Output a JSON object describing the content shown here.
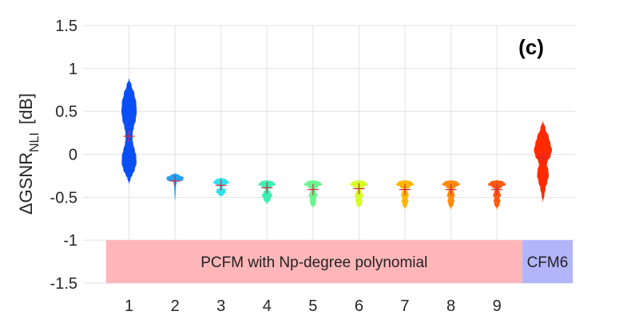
{
  "chart_data": {
    "type": "violin",
    "panel_label": "(c)",
    "ylabel": "ΔGSNR",
    "ylabel_subscript": "NLI",
    "ylabel_unit": "[dB]",
    "ylim": [
      -1.5,
      1.5
    ],
    "yticks": [
      1.5,
      1,
      0.5,
      0,
      -0.5,
      -1,
      -1.5
    ],
    "ytick_labels": [
      "1.5",
      "1",
      "0.5",
      "0",
      "-0.5",
      "-1",
      "-1.5"
    ],
    "xlim": [
      0,
      10.7
    ],
    "xticks": [
      1,
      2,
      3,
      4,
      5,
      6,
      7,
      8,
      9
    ],
    "xtick_labels": [
      "1",
      "2",
      "3",
      "4",
      "5",
      "6",
      "7",
      "8",
      "9"
    ],
    "grid": true,
    "bands": [
      {
        "label": "PCFM with Np-degree polynomial",
        "from": 0.5,
        "to": 9.55,
        "y_from": -1.5,
        "y_to": -1.0,
        "color": "#ffb6b9"
      },
      {
        "label": "CFM6",
        "from": 9.55,
        "to": 10.65,
        "y_from": -1.5,
        "y_to": -1.0,
        "color": "#b3b5fb"
      }
    ],
    "violins": [
      {
        "x": 1,
        "mean": 0.21,
        "color": "#0a4ff5",
        "profile": [
          [
            0.88,
            0
          ],
          [
            0.8,
            0.1
          ],
          [
            0.7,
            0.22
          ],
          [
            0.6,
            0.3
          ],
          [
            0.5,
            0.32
          ],
          [
            0.4,
            0.28
          ],
          [
            0.32,
            0.2
          ],
          [
            0.25,
            0.15
          ],
          [
            0.18,
            0.14
          ],
          [
            0.12,
            0.17
          ],
          [
            0.05,
            0.24
          ],
          [
            -0.02,
            0.3
          ],
          [
            -0.1,
            0.31
          ],
          [
            -0.18,
            0.24
          ],
          [
            -0.24,
            0.14
          ],
          [
            -0.28,
            0.06
          ],
          [
            -0.34,
            0
          ]
        ]
      },
      {
        "x": 2,
        "mean": -0.31,
        "color": "#1fa2f5",
        "profile": [
          [
            -0.22,
            0
          ],
          [
            -0.245,
            0.18
          ],
          [
            -0.27,
            0.36
          ],
          [
            -0.3,
            0.34
          ],
          [
            -0.32,
            0.06
          ],
          [
            -0.38,
            0.03
          ],
          [
            -0.44,
            0.02
          ],
          [
            -0.5,
            0.01
          ],
          [
            -0.53,
            0
          ]
        ]
      },
      {
        "x": 3,
        "mean": -0.36,
        "color": "#2be3ee",
        "profile": [
          [
            -0.27,
            0
          ],
          [
            -0.3,
            0.24
          ],
          [
            -0.33,
            0.34
          ],
          [
            -0.36,
            0.12
          ],
          [
            -0.39,
            0.05
          ],
          [
            -0.41,
            0.18
          ],
          [
            -0.44,
            0.2
          ],
          [
            -0.47,
            0.1
          ],
          [
            -0.49,
            0
          ]
        ]
      },
      {
        "x": 4,
        "mean": -0.39,
        "color": "#3fefb2",
        "profile": [
          [
            -0.3,
            0
          ],
          [
            -0.32,
            0.26
          ],
          [
            -0.35,
            0.37
          ],
          [
            -0.38,
            0.18
          ],
          [
            -0.41,
            0.06
          ],
          [
            -0.44,
            0.14
          ],
          [
            -0.48,
            0.22
          ],
          [
            -0.51,
            0.15
          ],
          [
            -0.53,
            0.14
          ],
          [
            -0.56,
            0.04
          ],
          [
            -0.58,
            0
          ]
        ]
      },
      {
        "x": 5,
        "mean": -0.41,
        "color": "#68f58e",
        "profile": [
          [
            -0.3,
            0
          ],
          [
            -0.32,
            0.26
          ],
          [
            -0.35,
            0.38
          ],
          [
            -0.38,
            0.2
          ],
          [
            -0.41,
            0.07
          ],
          [
            -0.44,
            0.12
          ],
          [
            -0.48,
            0.18
          ],
          [
            -0.51,
            0.12
          ],
          [
            -0.54,
            0.13
          ],
          [
            -0.58,
            0.1
          ],
          [
            -0.62,
            0
          ]
        ]
      },
      {
        "x": 6,
        "mean": -0.4,
        "color": "#d4fd26",
        "profile": [
          [
            -0.3,
            0
          ],
          [
            -0.32,
            0.27
          ],
          [
            -0.35,
            0.38
          ],
          [
            -0.38,
            0.2
          ],
          [
            -0.41,
            0.07
          ],
          [
            -0.44,
            0.12
          ],
          [
            -0.48,
            0.18
          ],
          [
            -0.51,
            0.12
          ],
          [
            -0.54,
            0.14
          ],
          [
            -0.58,
            0.1
          ],
          [
            -0.63,
            0
          ]
        ]
      },
      {
        "x": 7,
        "mean": -0.41,
        "color": "#ffb600",
        "profile": [
          [
            -0.3,
            0
          ],
          [
            -0.32,
            0.27
          ],
          [
            -0.35,
            0.38
          ],
          [
            -0.38,
            0.2
          ],
          [
            -0.41,
            0.07
          ],
          [
            -0.44,
            0.12
          ],
          [
            -0.48,
            0.16
          ],
          [
            -0.51,
            0.1
          ],
          [
            -0.54,
            0.14
          ],
          [
            -0.58,
            0.1
          ],
          [
            -0.64,
            0
          ]
        ]
      },
      {
        "x": 8,
        "mean": -0.41,
        "color": "#ff8a0a",
        "profile": [
          [
            -0.3,
            0
          ],
          [
            -0.32,
            0.27
          ],
          [
            -0.35,
            0.38
          ],
          [
            -0.38,
            0.2
          ],
          [
            -0.41,
            0.07
          ],
          [
            -0.44,
            0.12
          ],
          [
            -0.48,
            0.16
          ],
          [
            -0.51,
            0.1
          ],
          [
            -0.54,
            0.14
          ],
          [
            -0.58,
            0.1
          ],
          [
            -0.64,
            0
          ]
        ]
      },
      {
        "x": 9,
        "mean": -0.41,
        "color": "#ff5a10",
        "profile": [
          [
            -0.3,
            0
          ],
          [
            -0.32,
            0.27
          ],
          [
            -0.35,
            0.38
          ],
          [
            -0.38,
            0.2
          ],
          [
            -0.41,
            0.07
          ],
          [
            -0.44,
            0.12
          ],
          [
            -0.48,
            0.16
          ],
          [
            -0.51,
            0.1
          ],
          [
            -0.54,
            0.14
          ],
          [
            -0.58,
            0.1
          ],
          [
            -0.64,
            0
          ]
        ]
      },
      {
        "x": 10,
        "mean": -0.04,
        "color": "#ff2a00",
        "profile": [
          [
            0.39,
            0
          ],
          [
            0.3,
            0.1
          ],
          [
            0.2,
            0.24
          ],
          [
            0.12,
            0.32
          ],
          [
            0.05,
            0.38
          ],
          [
            -0.02,
            0.32
          ],
          [
            -0.08,
            0.2
          ],
          [
            -0.12,
            0.16
          ],
          [
            -0.18,
            0.22
          ],
          [
            -0.25,
            0.24
          ],
          [
            -0.32,
            0.18
          ],
          [
            -0.4,
            0.1
          ],
          [
            -0.48,
            0.05
          ],
          [
            -0.55,
            0
          ]
        ]
      }
    ],
    "mean_marker_color": "#d6253c"
  }
}
